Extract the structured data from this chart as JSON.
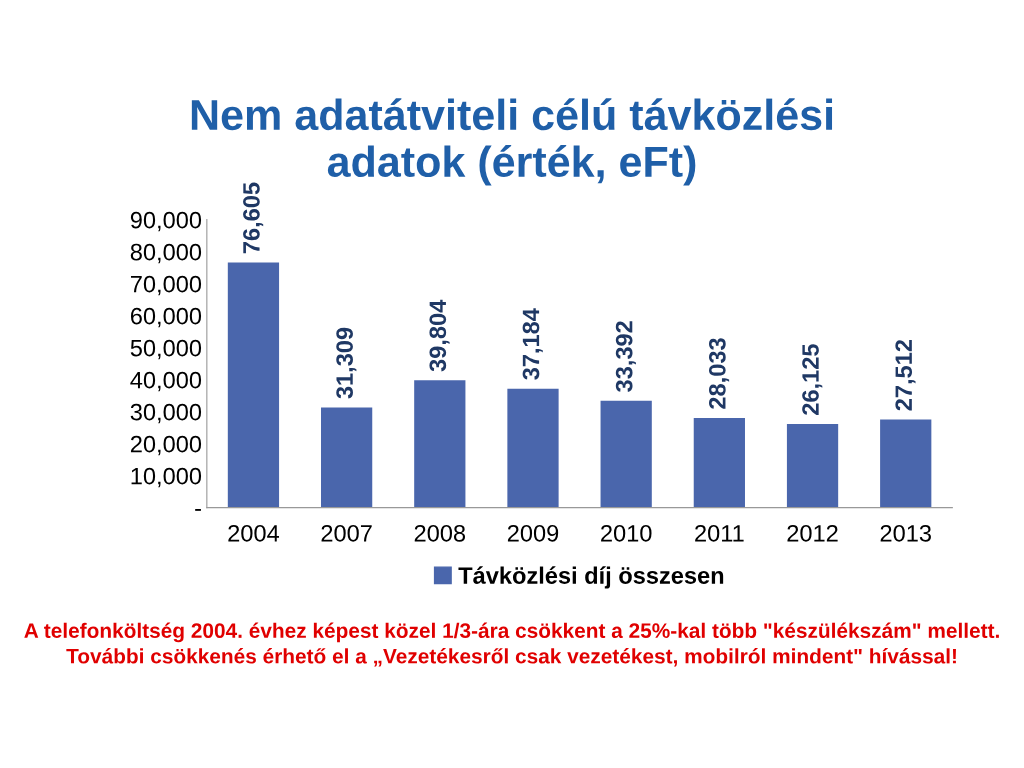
{
  "chart_data": {
    "type": "bar",
    "title": "Nem adatátviteli célú távközlési\nadatok (érték, eFt)",
    "categories": [
      "2004",
      "2007",
      "2008",
      "2009",
      "2010",
      "2011",
      "2012",
      "2013"
    ],
    "series": [
      {
        "name": "Távközlési díj összesen",
        "color": "#4a66ac",
        "values": [
          76605,
          31309,
          39804,
          37184,
          33392,
          28033,
          26125,
          27512
        ],
        "value_labels": [
          "76,605",
          "31,309",
          "39,804",
          "37,184",
          "33,392",
          "28,033",
          "26,125",
          "27,512"
        ]
      }
    ],
    "ylim": [
      0,
      90000
    ],
    "yticks": [
      {
        "value": 0,
        "label": "-"
      },
      {
        "value": 10000,
        "label": "10,000"
      },
      {
        "value": 20000,
        "label": "20,000"
      },
      {
        "value": 30000,
        "label": "30,000"
      },
      {
        "value": 40000,
        "label": "40,000"
      },
      {
        "value": 50000,
        "label": "50,000"
      },
      {
        "value": 60000,
        "label": "60,000"
      },
      {
        "value": 70000,
        "label": "70,000"
      },
      {
        "value": 80000,
        "label": "80,000"
      },
      {
        "value": 90000,
        "label": "90,000"
      }
    ],
    "legend": "bottom",
    "grid": false,
    "annotations": [
      "A telefonköltség 2004. évhez képest közel 1/3-ára csökkent a 25%-kal több \"készülékszám\" mellett. További csökkenés érhető el a „Vezetékesről csak vezetékest, mobilról mindent\" hívással!"
    ]
  }
}
